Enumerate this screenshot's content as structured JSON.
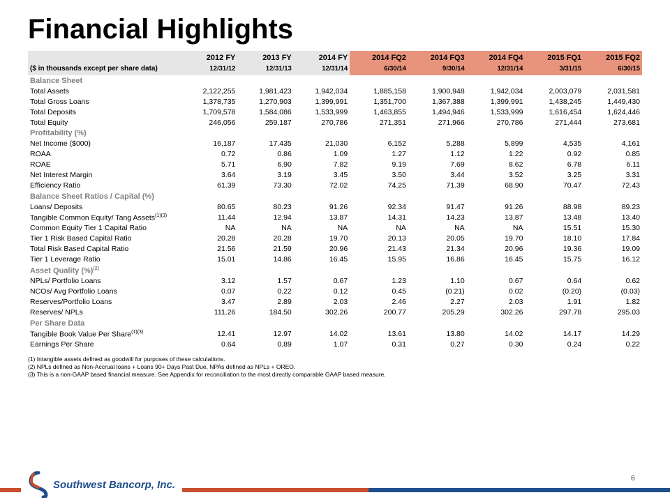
{
  "title": "Financial Highlights",
  "subtitle": "($ in thousands except per share data)",
  "periods": [
    {
      "label": "2012 FY",
      "date": "12/31/12",
      "highlight": false
    },
    {
      "label": "2013 FY",
      "date": "12/31/13",
      "highlight": false
    },
    {
      "label": "2014 FY",
      "date": "12/31/14",
      "highlight": false
    },
    {
      "label": "2014 FQ2",
      "date": "6/30/14",
      "highlight": true
    },
    {
      "label": "2014 FQ3",
      "date": "9/30/14",
      "highlight": true
    },
    {
      "label": "2014 FQ4",
      "date": "12/31/14",
      "highlight": true
    },
    {
      "label": "2015 FQ1",
      "date": "3/31/15",
      "highlight": true
    },
    {
      "label": "2015 FQ2",
      "date": "6/30/15",
      "highlight": true
    }
  ],
  "sections": [
    {
      "name": "Balance Sheet",
      "rows": [
        {
          "label": "Total Assets",
          "v": [
            "2,122,255",
            "1,981,423",
            "1,942,034",
            "1,885,158",
            "1,900,948",
            "1,942,034",
            "2,003,079",
            "2,031,581"
          ]
        },
        {
          "label": "Total Gross Loans",
          "v": [
            "1,378,735",
            "1,270,903",
            "1,399,991",
            "1,351,700",
            "1,367,388",
            "1,399,991",
            "1,438,245",
            "1,449,430"
          ]
        },
        {
          "label": "Total Deposits",
          "v": [
            "1,709,578",
            "1,584,086",
            "1,533,999",
            "1,463,855",
            "1,494,946",
            "1,533,999",
            "1,616,454",
            "1,624,446"
          ]
        },
        {
          "label": "Total Equity",
          "v": [
            "246,056",
            "259,187",
            "270,786",
            "271,351",
            "271,966",
            "270,786",
            "271,444",
            "273,681"
          ]
        }
      ]
    },
    {
      "name": "Profitability (%)",
      "rows": [
        {
          "label": "Net Income ($000)",
          "v": [
            "16,187",
            "17,435",
            "21,030",
            "6,152",
            "5,288",
            "5,899",
            "4,535",
            "4,161"
          ]
        },
        {
          "label": "ROAA",
          "v": [
            "0.72",
            "0.86",
            "1.09",
            "1.27",
            "1.12",
            "1.22",
            "0.92",
            "0.85"
          ]
        },
        {
          "label": "ROAE",
          "v": [
            "5.71",
            "6.90",
            "7.82",
            "9.19",
            "7.69",
            "8.62",
            "6.78",
            "6.11"
          ]
        },
        {
          "label": "Net Interest Margin",
          "v": [
            "3.64",
            "3.19",
            "3.45",
            "3.50",
            "3.44",
            "3.52",
            "3.25",
            "3.31"
          ]
        },
        {
          "label": "Efficiency Ratio",
          "v": [
            "61.39",
            "73.30",
            "72.02",
            "74.25",
            "71.39",
            "68.90",
            "70.47",
            "72.43"
          ]
        }
      ]
    },
    {
      "name": "Balance Sheet Ratios / Capital (%)",
      "rows": [
        {
          "label": "Loans/ Deposits",
          "v": [
            "80.65",
            "80.23",
            "91.26",
            "92.34",
            "91.47",
            "91.26",
            "88.98",
            "89.23"
          ]
        },
        {
          "label": "Tangible Common Equity/ Tang Assets",
          "sup": "(1)(3)",
          "v": [
            "11.44",
            "12.94",
            "13.87",
            "14.31",
            "14.23",
            "13.87",
            "13.48",
            "13.40"
          ]
        },
        {
          "label": "Common Equity Tier 1 Capital Ratio",
          "v": [
            "NA",
            "NA",
            "NA",
            "NA",
            "NA",
            "NA",
            "15.51",
            "15.30"
          ]
        },
        {
          "label": "Tier 1 Risk Based Capital Ratio",
          "v": [
            "20.28",
            "20.28",
            "19.70",
            "20.13",
            "20.05",
            "19.70",
            "18.10",
            "17.84"
          ]
        },
        {
          "label": "Total Risk Based Capital Ratio",
          "v": [
            "21.56",
            "21.59",
            "20.96",
            "21.43",
            "21.34",
            "20.96",
            "19.36",
            "19.09"
          ]
        },
        {
          "label": "Tier 1 Leverage Ratio",
          "v": [
            "15.01",
            "14.86",
            "16.45",
            "15.95",
            "16.86",
            "16.45",
            "15.75",
            "16.12"
          ]
        }
      ]
    },
    {
      "name": "Asset Quality (%)",
      "sup": "(2)",
      "rows": [
        {
          "label": "NPLs/ Portfolio Loans",
          "v": [
            "3.12",
            "1.57",
            "0.67",
            "1.23",
            "1.10",
            "0.67",
            "0.64",
            "0.62"
          ]
        },
        {
          "label": "NCOs/ Avg Portfolio Loans",
          "v": [
            "0.07",
            "0.22",
            "0.12",
            "0.45",
            "(0.21)",
            "0.02",
            "(0.20)",
            "(0.03)"
          ]
        },
        {
          "label": "Reserves/Portfolio Loans",
          "v": [
            "3.47",
            "2.89",
            "2.03",
            "2.46",
            "2.27",
            "2.03",
            "1.91",
            "1.82"
          ]
        },
        {
          "label": "Reserves/ NPLs",
          "v": [
            "111.26",
            "184.50",
            "302.26",
            "200.77",
            "205.29",
            "302.26",
            "297.78",
            "295.03"
          ]
        }
      ]
    },
    {
      "name": "Per Share Data",
      "rows": [
        {
          "label": "Tangible Book Value Per Share",
          "sup": "(1)(3)",
          "v": [
            "12.41",
            "12.97",
            "14.02",
            "13.61",
            "13.80",
            "14.02",
            "14.17",
            "14.29"
          ]
        },
        {
          "label": "Earnings Per Share",
          "v": [
            "0.64",
            "0.89",
            "1.07",
            "0.31",
            "0.27",
            "0.30",
            "0.24",
            "0.22"
          ]
        }
      ]
    }
  ],
  "footnotes": [
    "(1)   Intangible assets defined as goodwill for purposes of these calculations.",
    "(2)   NPLs defined as Non-Accrual loans + Loans 90+ Days Past Due, NPAs defined as NPLs + OREO.",
    "(3)   This is a non-GAAP based financial measure.  See Appendix for reconciliation to the most directly comparable GAAP based measure."
  ],
  "company": "Southwest Bancorp, Inc.",
  "page_number": "6",
  "colors": {
    "header_gray": "#e6e6e6",
    "header_highlight": "#e8937b",
    "section_gray": "#808080",
    "bar_orange": "#c84f2c",
    "bar_blue": "#1f4e8c"
  }
}
